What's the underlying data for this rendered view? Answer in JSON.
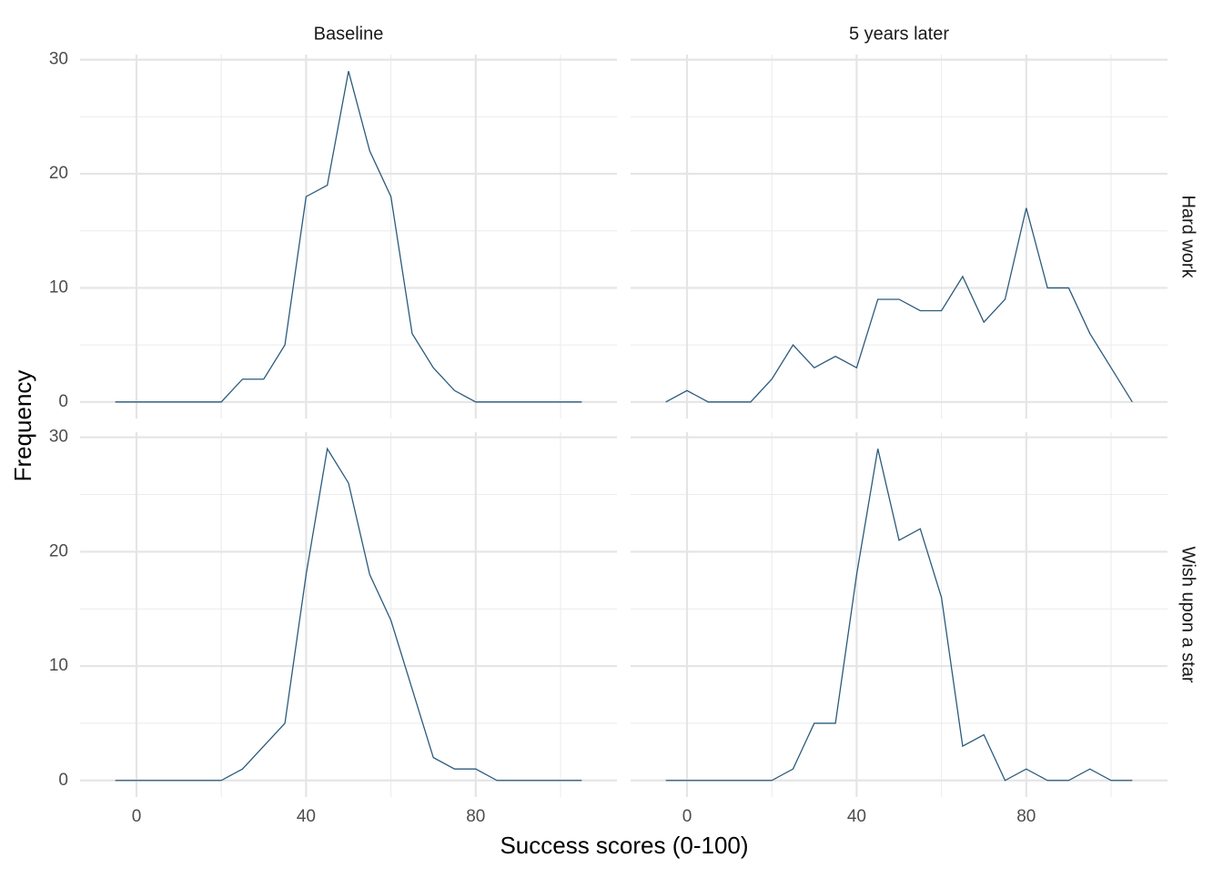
{
  "chart_data": {
    "type": "line",
    "x_label": "Success scores (0-100)",
    "y_label": "Frequency",
    "facet_cols": [
      "Baseline",
      "5 years later"
    ],
    "facet_rows": [
      "Hard work",
      "Wish upon a star"
    ],
    "color": "#2b5b7c",
    "x": [
      -5,
      0,
      5,
      10,
      15,
      20,
      25,
      30,
      35,
      40,
      45,
      50,
      55,
      60,
      65,
      70,
      75,
      80,
      85,
      90,
      95,
      100,
      105
    ],
    "values": [
      [
        [
          0,
          0,
          0,
          0,
          0,
          0,
          2,
          2,
          5,
          18,
          19,
          29,
          22,
          18,
          6,
          3,
          1,
          0,
          0,
          0,
          0,
          0,
          0
        ],
        [
          0,
          1,
          0,
          0,
          0,
          2,
          5,
          3,
          4,
          3,
          9,
          9,
          8,
          8,
          11,
          7,
          9,
          17,
          10,
          10,
          6,
          3,
          0
        ]
      ],
      [
        [
          0,
          0,
          0,
          0,
          0,
          0,
          1,
          3,
          5,
          18,
          29,
          26,
          18,
          14,
          8,
          2,
          1,
          1,
          0,
          0,
          0,
          0,
          0
        ],
        [
          0,
          0,
          0,
          0,
          0,
          0,
          1,
          5,
          5,
          18,
          29,
          21,
          22,
          16,
          3,
          4,
          0,
          1,
          0,
          0,
          1,
          0,
          0
        ]
      ]
    ],
    "xlim": [
      -13.3,
      113.3
    ],
    "xticks": [
      0,
      40,
      80
    ],
    "xminor": [
      20,
      60,
      100
    ],
    "ylim": [
      -1.45,
      30.45
    ],
    "yticks": [
      0,
      10,
      20,
      30
    ],
    "yminor": [
      5,
      15,
      25
    ],
    "grid": true
  }
}
